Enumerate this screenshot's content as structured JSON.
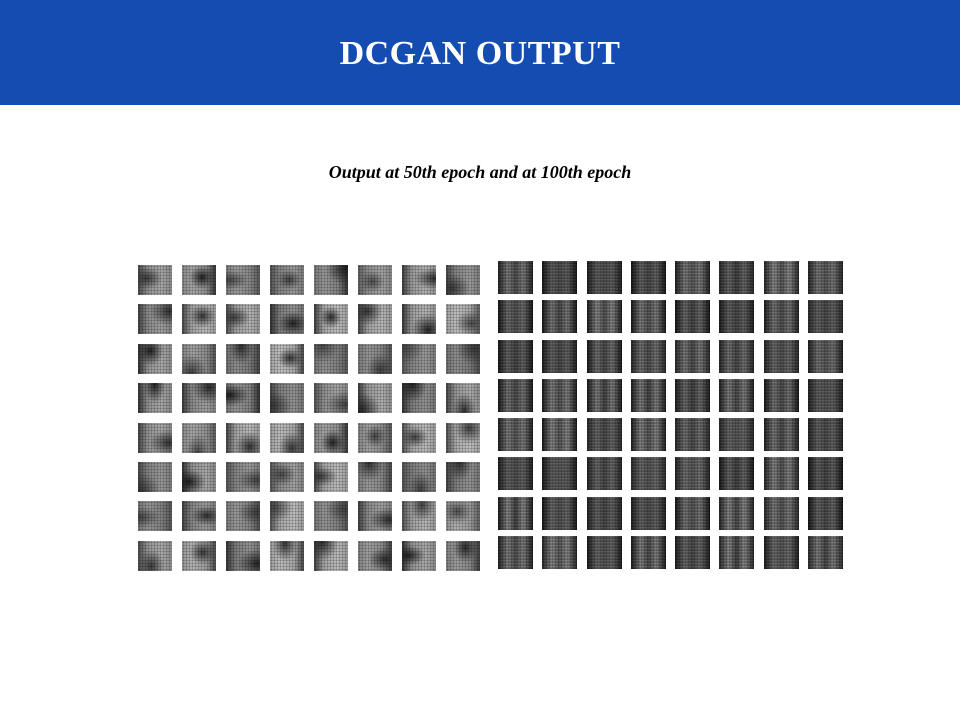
{
  "slide": {
    "title": "DCGAN OUTPUT",
    "subtitle": "Output at 50th epoch and at 100th epoch"
  },
  "colors": {
    "header_background": "#144cb2",
    "title_text": "#ffffff",
    "body_text": "#000000",
    "page_background": "#ffffff"
  },
  "figure": {
    "description_panels": [
      {
        "id": "epoch-50",
        "grid_rows": 8,
        "grid_cols": 8,
        "tone": "light-noisy-grayscale"
      },
      {
        "id": "epoch-100",
        "grid_rows": 8,
        "grid_cols": 8,
        "tone": "dark-structured-grayscale"
      }
    ]
  }
}
